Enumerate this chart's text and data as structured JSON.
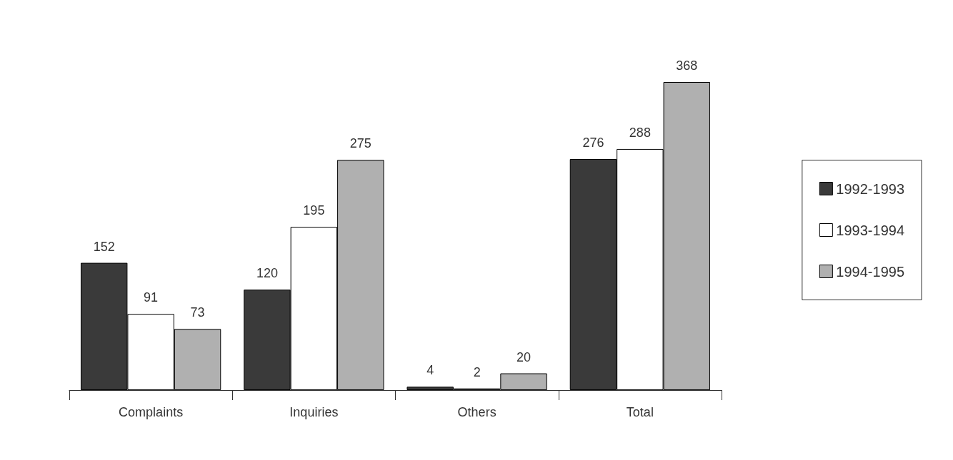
{
  "chart_data": {
    "type": "bar",
    "categories": [
      "Complaints",
      "Inquiries",
      "Others",
      "Total"
    ],
    "series": [
      {
        "name": "1992-1993",
        "color": "#3a3a3a",
        "values": [
          152,
          120,
          4,
          276
        ]
      },
      {
        "name": "1993-1994",
        "color": "#ffffff",
        "values": [
          91,
          195,
          2,
          288
        ]
      },
      {
        "name": "1994-1995",
        "color": "#b0b0b0",
        "values": [
          73,
          275,
          20,
          368
        ]
      }
    ],
    "data_labels": true,
    "legend": "right"
  }
}
